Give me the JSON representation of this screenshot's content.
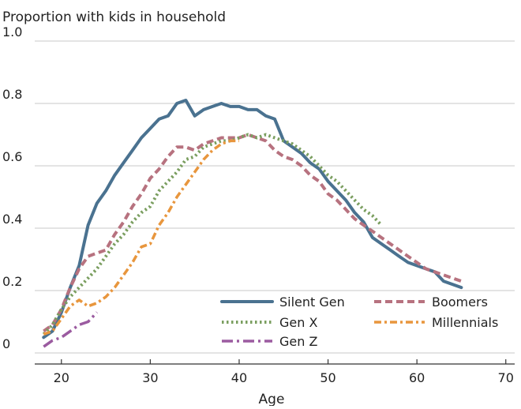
{
  "chart_data": {
    "type": "line",
    "title": "Proportion with kids in household",
    "xlabel": "Age",
    "ylabel": "",
    "xlim": [
      17,
      71
    ],
    "ylim": [
      0,
      1.0
    ],
    "x_ticks": [
      20,
      30,
      40,
      50,
      60,
      70
    ],
    "y_ticks": [
      0,
      0.2,
      0.4,
      0.6,
      0.8,
      1.0
    ],
    "y_tick_labels": [
      "0",
      "0.2",
      "0.4",
      "0.6",
      "0.8",
      "1.0"
    ],
    "grid": "horizontal",
    "legend_position": "bottom-right",
    "series": [
      {
        "name": "Silent Gen",
        "color": "#4a7290",
        "dash": "solid",
        "x": [
          18,
          19,
          20,
          21,
          22,
          23,
          24,
          25,
          26,
          27,
          28,
          29,
          30,
          31,
          32,
          33,
          34,
          35,
          36,
          37,
          38,
          39,
          40,
          41,
          42,
          43,
          44,
          45,
          46,
          47,
          48,
          49,
          50,
          51,
          52,
          53,
          54,
          55,
          56,
          57,
          58,
          59,
          60,
          61,
          62,
          63,
          64,
          65
        ],
        "y": [
          0.05,
          0.07,
          0.13,
          0.21,
          0.28,
          0.41,
          0.48,
          0.52,
          0.57,
          0.61,
          0.65,
          0.69,
          0.72,
          0.75,
          0.76,
          0.8,
          0.81,
          0.76,
          0.78,
          0.79,
          0.8,
          0.79,
          0.79,
          0.78,
          0.78,
          0.76,
          0.75,
          0.68,
          0.66,
          0.64,
          0.61,
          0.59,
          0.55,
          0.52,
          0.49,
          0.45,
          0.42,
          0.37,
          0.35,
          0.33,
          0.31,
          0.29,
          0.28,
          0.27,
          0.26,
          0.23,
          0.22,
          0.21
        ]
      },
      {
        "name": "Boomers",
        "color": "#b7727f",
        "dash": "dashed",
        "x": [
          18,
          19,
          20,
          21,
          22,
          23,
          24,
          25,
          26,
          27,
          28,
          29,
          30,
          31,
          32,
          33,
          34,
          35,
          36,
          37,
          38,
          39,
          40,
          41,
          42,
          43,
          44,
          45,
          46,
          47,
          48,
          49,
          50,
          51,
          52,
          53,
          54,
          55,
          56,
          57,
          58,
          59,
          60,
          61,
          62,
          63,
          64,
          65
        ],
        "y": [
          0.07,
          0.09,
          0.14,
          0.21,
          0.27,
          0.31,
          0.32,
          0.33,
          0.38,
          0.42,
          0.47,
          0.51,
          0.56,
          0.59,
          0.63,
          0.66,
          0.66,
          0.65,
          0.67,
          0.68,
          0.69,
          0.69,
          0.69,
          0.7,
          0.69,
          0.68,
          0.65,
          0.63,
          0.62,
          0.6,
          0.57,
          0.55,
          0.51,
          0.49,
          0.46,
          0.43,
          0.41,
          0.39,
          0.37,
          0.35,
          0.33,
          0.31,
          0.29,
          0.27,
          0.26,
          0.25,
          0.24,
          0.23
        ]
      },
      {
        "name": "Gen X",
        "color": "#7a9e5f",
        "dash": "dotted",
        "x": [
          18,
          19,
          20,
          21,
          22,
          23,
          24,
          25,
          26,
          27,
          28,
          29,
          30,
          31,
          32,
          33,
          34,
          35,
          36,
          37,
          38,
          39,
          40,
          41,
          42,
          43,
          44,
          45,
          46,
          47,
          48,
          49,
          50,
          51,
          52,
          53,
          54,
          55,
          56
        ],
        "y": [
          0.06,
          0.09,
          0.14,
          0.18,
          0.21,
          0.24,
          0.27,
          0.31,
          0.35,
          0.38,
          0.42,
          0.45,
          0.47,
          0.52,
          0.55,
          0.58,
          0.62,
          0.63,
          0.66,
          0.67,
          0.68,
          0.68,
          0.69,
          0.7,
          0.69,
          0.7,
          0.69,
          0.68,
          0.67,
          0.65,
          0.63,
          0.6,
          0.57,
          0.55,
          0.52,
          0.49,
          0.46,
          0.44,
          0.41
        ]
      },
      {
        "name": "Millennials",
        "color": "#e8963d",
        "dash": "dashdot",
        "x": [
          18,
          19,
          20,
          21,
          22,
          23,
          24,
          25,
          26,
          27,
          28,
          29,
          30,
          31,
          32,
          33,
          34,
          35,
          36,
          37,
          38,
          39,
          40
        ],
        "y": [
          0.06,
          0.07,
          0.11,
          0.15,
          0.17,
          0.15,
          0.16,
          0.18,
          0.21,
          0.25,
          0.29,
          0.34,
          0.35,
          0.41,
          0.45,
          0.5,
          0.54,
          0.58,
          0.62,
          0.65,
          0.67,
          0.68,
          0.68
        ]
      },
      {
        "name": "Gen Z",
        "color": "#9b5ba0",
        "dash": "longdash",
        "x": [
          18,
          19,
          20,
          21,
          22,
          23,
          24
        ],
        "y": [
          0.02,
          0.04,
          0.05,
          0.07,
          0.09,
          0.1,
          0.13
        ]
      }
    ]
  }
}
